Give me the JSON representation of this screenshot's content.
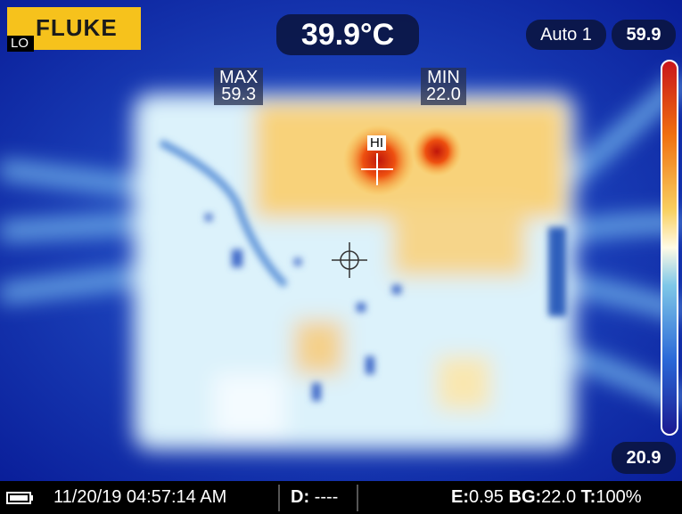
{
  "logo": {
    "brand": "FLUKE",
    "mode": "LO"
  },
  "center_temp": "39.9°C",
  "palette_mode": "Auto 1",
  "scale": {
    "max": "59.9",
    "min": "20.9"
  },
  "markers": {
    "max_label": "MAX",
    "max_value": "59.3",
    "min_label": "MIN",
    "min_value": "22.0",
    "hot_spot": "HI"
  },
  "status_bar": {
    "datetime": "11/20/19 04:57:14 AM",
    "distance_label": "D:",
    "distance_value": "----",
    "emissivity_label": "E:",
    "emissivity_value": "0.95",
    "background_label": "BG:",
    "background_value": "22.0",
    "transmission_label": "T:",
    "transmission_value": "100%"
  }
}
